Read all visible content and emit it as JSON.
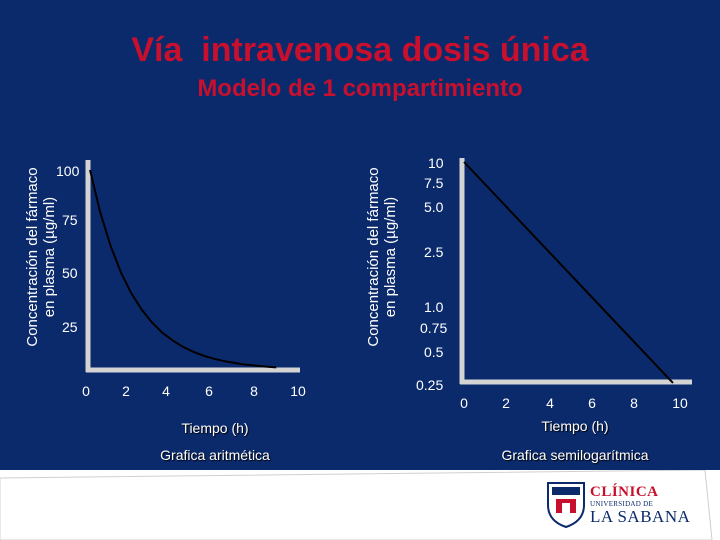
{
  "title": "Vía  intravenosa dosis única",
  "subtitle": "Modelo de 1 compartimiento",
  "chart_data": [
    {
      "type": "line",
      "name": "aritmetica",
      "caption": "Grafica aritmética",
      "ylabel": [
        "Concentración del fármaco",
        "en plasma (µg/ml)"
      ],
      "xlabel": "Tiempo (h)",
      "x_ticks": [
        "0",
        "2",
        "4",
        "6",
        "8",
        "10"
      ],
      "y_ticks": [
        "25",
        "50",
        "75",
        "100"
      ],
      "ylim": [
        0,
        100
      ],
      "xlim": [
        0,
        10
      ],
      "series": [
        {
          "name": "concentración",
          "x": [
            0,
            0.5,
            1,
            1.5,
            2,
            2.5,
            3,
            3.5,
            4,
            4.5,
            5,
            5.5,
            6,
            6.5,
            7,
            7.5,
            8,
            8.5,
            9
          ],
          "y": [
            100,
            78.7,
            61.9,
            48.7,
            38.3,
            30.1,
            23.7,
            18.6,
            14.7,
            11.5,
            9.1,
            7.1,
            5.6,
            4.4,
            3.5,
            2.7,
            2.2,
            1.7,
            1.3
          ]
        }
      ]
    },
    {
      "type": "line",
      "name": "semilogaritmica",
      "caption": "Grafica semilogarítmica",
      "ylabel": [
        "Concentración del fármaco",
        "en plasma (µg/ml)"
      ],
      "xlabel": "Tiempo (h)",
      "x_ticks": [
        "0",
        "2",
        "4",
        "6",
        "8",
        "10"
      ],
      "y_ticks": [
        "10",
        "7.5",
        "5.0",
        "2.5",
        "1.0",
        "0.75",
        "0.5",
        "0.25"
      ],
      "scale": "log",
      "xlim": [
        0,
        10
      ],
      "series": [
        {
          "name": "concentración",
          "x": [
            0,
            9.5
          ],
          "y": [
            10,
            0.25
          ]
        }
      ]
    }
  ],
  "logo": {
    "line1": "CLÍNICA",
    "line2": "UNIVERSIDAD DE",
    "line3": "LA SABANA"
  },
  "colors": {
    "background": "#0b2a6b",
    "title": "#c8102e",
    "axis": "#d4d4d4",
    "curve": "#000000"
  }
}
